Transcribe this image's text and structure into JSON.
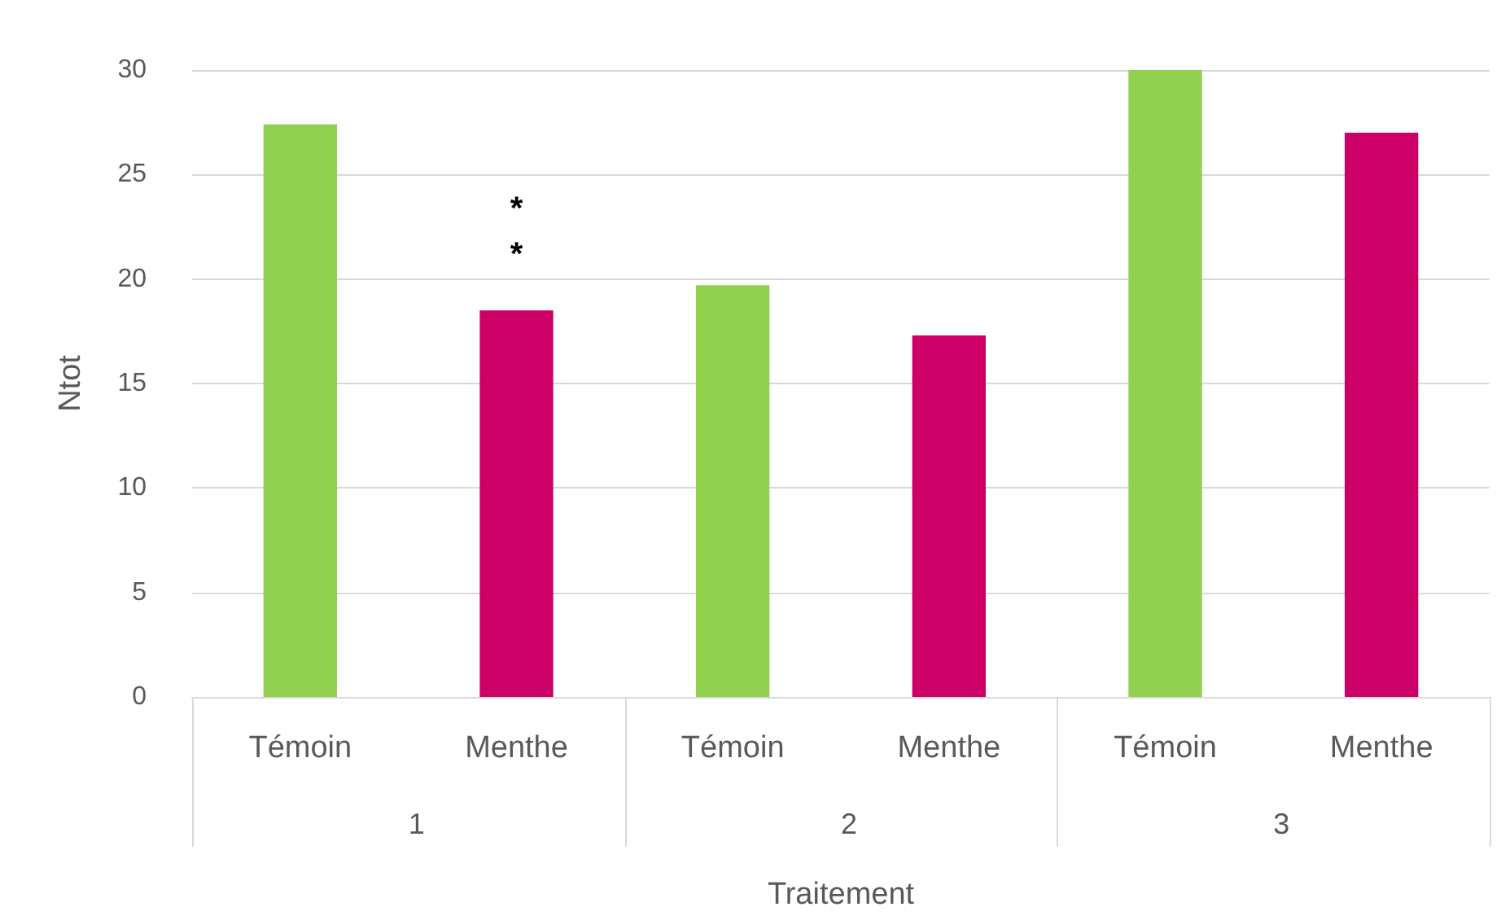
{
  "chart_data": {
    "type": "bar",
    "xlabel": "Traitement",
    "ylabel": "Ntot",
    "categories": [
      "Témoin",
      "Menthe",
      "Témoin",
      "Menthe",
      "Témoin",
      "Menthe"
    ],
    "values": [
      27.4,
      18.5,
      19.7,
      17.3,
      30,
      27
    ],
    "colors": [
      "#92d050",
      "#cc0066",
      "#92d050",
      "#cc0066",
      "#92d050",
      "#cc0066"
    ],
    "value_labels": [
      null,
      "*\n*",
      null,
      null,
      null,
      null
    ],
    "ylim": [
      0,
      30
    ],
    "yticks": [
      0,
      5,
      10,
      15,
      20,
      25,
      30
    ],
    "grid": "y",
    "annotations": [
      "1",
      "2",
      "3"
    ]
  }
}
